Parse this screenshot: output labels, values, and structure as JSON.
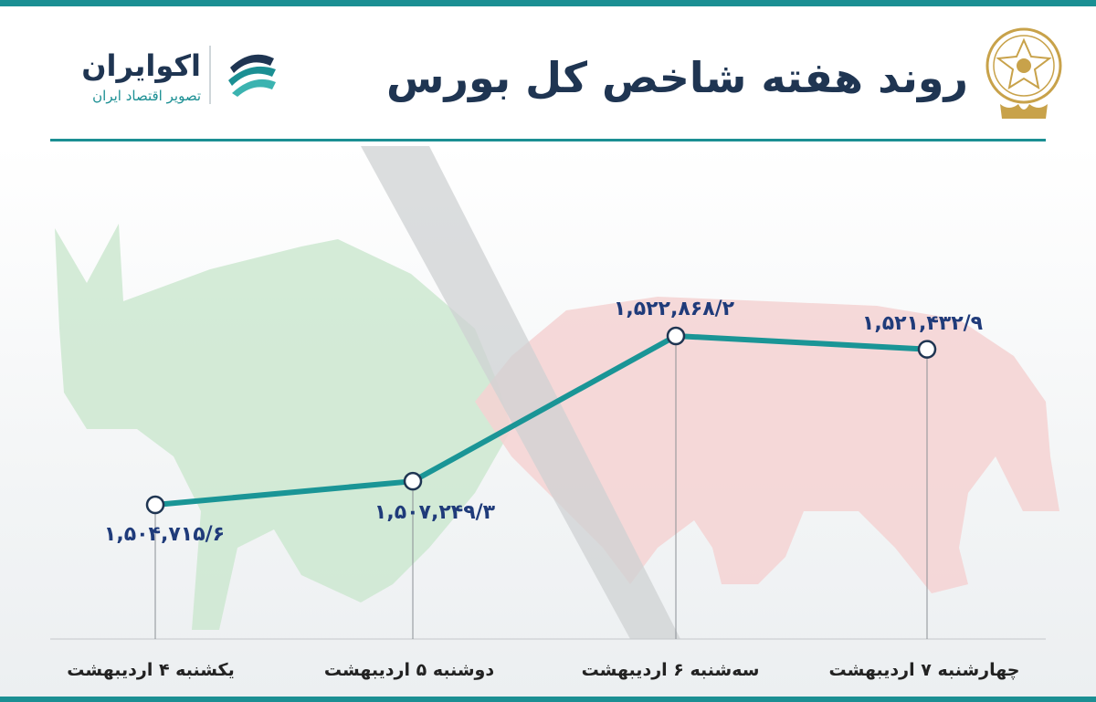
{
  "header": {
    "title": "روند هفته شاخص کل بورس",
    "logo_name": "اکوایران",
    "logo_tagline": "تصویر اقتصاد ایران"
  },
  "colors": {
    "line": "#1a9596",
    "label": "#1f3b7a",
    "bull": "#c8e6cc",
    "bear": "#f3cfcf",
    "accent": "#1b8f93"
  },
  "icons": {
    "seal": "stock-exchange-seal-icon",
    "logo": "ecoiran-logo-icon"
  },
  "chart_data": {
    "type": "line",
    "title": "روند هفته شاخص کل بورس",
    "categories": [
      "یکشنبه ۴ اردیبهشت",
      "دوشنبه ۵ اردیبهشت",
      "سه‌شنبه ۶ اردیبهشت",
      "چهارشنبه ۷ اردیبهشت"
    ],
    "series": [
      {
        "values": [
          1504715.6,
          1507249.3,
          1522868.2,
          1521432.9
        ],
        "data_labels": [
          "۱,۵۰۴,۷۱۵/۶",
          "۱,۵۰۷,۲۴۹/۳",
          "۱,۵۲۲,۸۶۸/۲",
          "۱,۵۲۱,۴۳۲/۹"
        ]
      }
    ],
    "xlabel": "",
    "ylabel": "",
    "ylim": [
      1495000,
      1530000
    ],
    "grid": false,
    "legend": "none"
  }
}
